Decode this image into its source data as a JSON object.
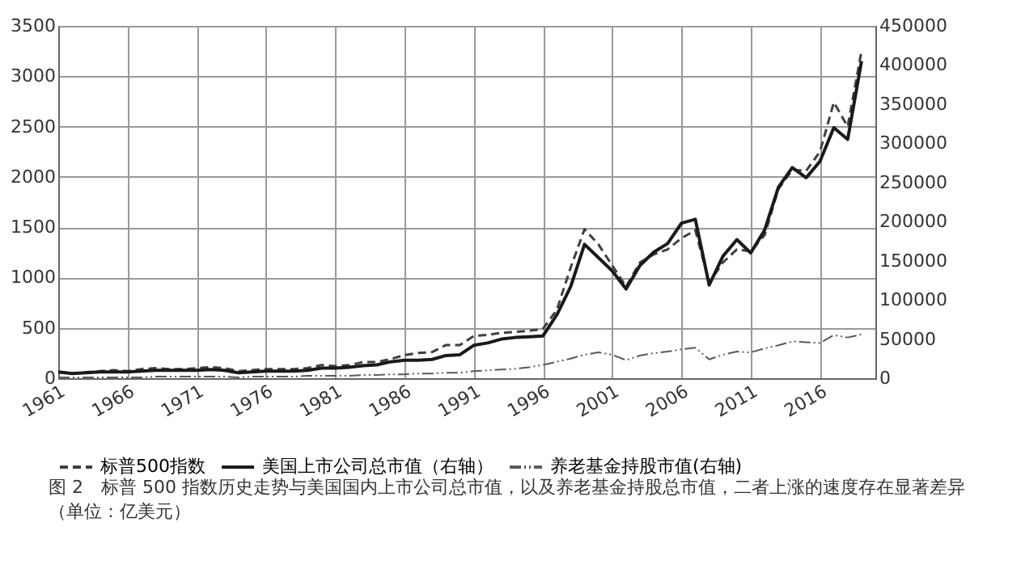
{
  "chart_data": {
    "type": "line",
    "x": [
      1961,
      1962,
      1963,
      1964,
      1965,
      1966,
      1967,
      1968,
      1969,
      1970,
      1971,
      1972,
      1973,
      1974,
      1975,
      1976,
      1977,
      1978,
      1979,
      1980,
      1981,
      1982,
      1983,
      1984,
      1985,
      1986,
      1987,
      1988,
      1989,
      1990,
      1991,
      1992,
      1993,
      1994,
      1995,
      1996,
      1997,
      1998,
      1999,
      2000,
      2001,
      2002,
      2003,
      2004,
      2005,
      2006,
      2007,
      2008,
      2009,
      2010,
      2011,
      2012,
      2013,
      2014,
      2015,
      2016,
      2017,
      2018,
      2019
    ],
    "series": [
      {
        "name": "标普500指数",
        "color": "#404040",
        "line_style": "dashed",
        "values": [
          60,
          50,
          60,
          70,
          80,
          70,
          90,
          100,
          90,
          90,
          100,
          110,
          100,
          70,
          80,
          90,
          90,
          90,
          100,
          130,
          120,
          130,
          160,
          160,
          190,
          230,
          250,
          260,
          330,
          330,
          420,
          430,
          450,
          460,
          470,
          490,
          680,
          1100,
          1480,
          1330,
          1120,
          910,
          1150,
          1230,
          1280,
          1390,
          1470,
          950,
          1150,
          1280,
          1260,
          1420,
          1880,
          2070,
          2060,
          2250,
          2740,
          2500,
          3250
        ]
      },
      {
        "name": "美国上市公司总市值（右轴）",
        "color": "#1a1a1a",
        "line_style": "solid",
        "axis": "y2",
        "values": [
          8000,
          6000,
          7000,
          8000,
          8000,
          8000,
          9000,
          10000,
          10000,
          10000,
          10000,
          11000,
          10000,
          7000,
          8000,
          9000,
          9000,
          9000,
          10000,
          13000,
          13000,
          14000,
          16000,
          17000,
          21000,
          23000,
          23000,
          24000,
          29000,
          30000,
          42000,
          45000,
          50000,
          52000,
          53000,
          54000,
          81000,
          117000,
          171000,
          154000,
          137000,
          114000,
          144000,
          161000,
          172000,
          198000,
          203000,
          119000,
          156000,
          177000,
          160000,
          189000,
          244000,
          269000,
          256000,
          277000,
          320000,
          305000,
          405000
        ]
      },
      {
        "name": "养老基金持股市值(右轴)",
        "color": "#5a5a5a",
        "line_style": "dotted",
        "axis": "y2",
        "values": [
          1000,
          1000,
          1000,
          1000,
          1000,
          1000,
          1000,
          2000,
          2000,
          2000,
          2000,
          2000,
          2000,
          1000,
          2000,
          2000,
          2000,
          2000,
          3000,
          3000,
          3000,
          3000,
          4000,
          4000,
          5000,
          5000,
          6000,
          6000,
          7000,
          7000,
          9000,
          10000,
          11000,
          12000,
          14000,
          17000,
          21000,
          25000,
          30000,
          33000,
          30000,
          23000,
          29000,
          32000,
          34000,
          37000,
          39000,
          24000,
          30000,
          34000,
          33000,
          38000,
          42000,
          47000,
          46000,
          45000,
          55000,
          52000,
          56000
        ]
      }
    ],
    "xlim": [
      1961,
      2020
    ],
    "xticks": [
      1961,
      1966,
      1971,
      1976,
      1981,
      1986,
      1991,
      1996,
      2001,
      2006,
      2011,
      2016
    ],
    "ylim": [
      0,
      3500
    ],
    "yticks": [
      0,
      500,
      1000,
      1500,
      2000,
      2500,
      3000,
      3500
    ],
    "y2lim": [
      0,
      450000
    ],
    "y2ticks": [
      0,
      50000,
      100000,
      150000,
      200000,
      250000,
      300000,
      350000,
      400000,
      450000
    ],
    "grid": true,
    "legend": "bottom",
    "annotations": [
      "图 2　标普 500 指数历史走势与美国国内上市公司总市值，以及养老基金持股总市值，二者上涨的速度存在显著差异（单位：亿美元）"
    ]
  }
}
